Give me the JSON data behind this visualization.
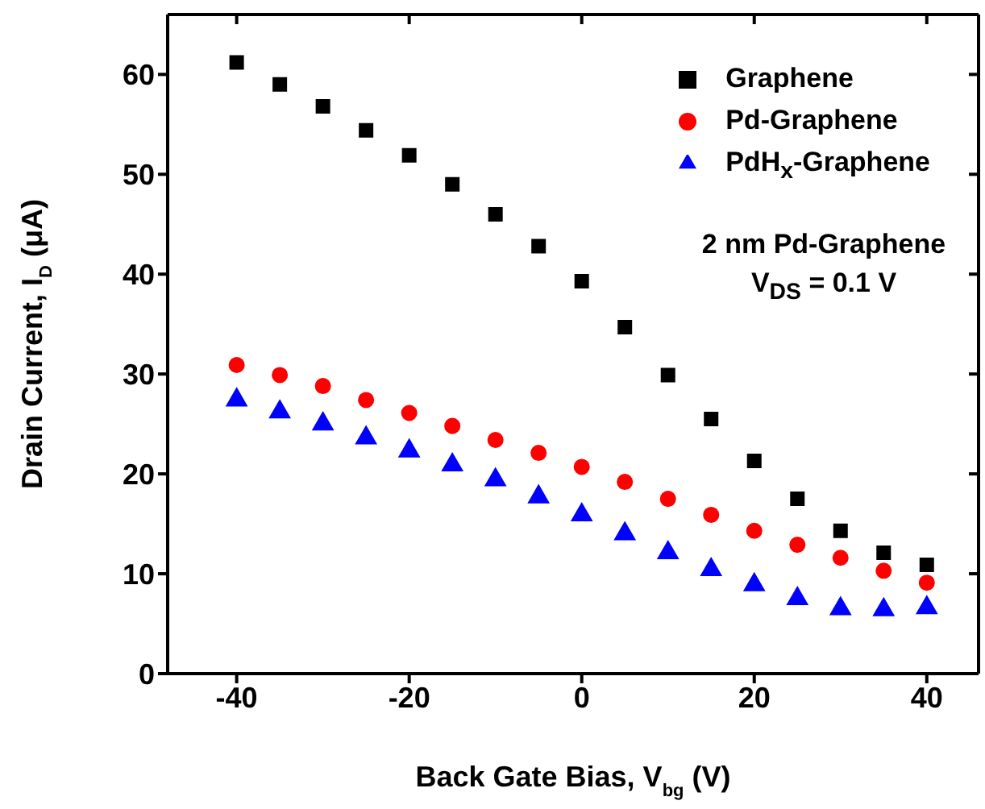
{
  "chart_data": {
    "type": "scatter",
    "xlabel": "Back Gate Bias, V$_{bg}$ (V)",
    "ylabel": "Drain Current, I$_{D}$ (μA)",
    "x": [
      -40,
      -35,
      -30,
      -25,
      -20,
      -15,
      -10,
      -5,
      0,
      5,
      10,
      15,
      20,
      25,
      30,
      35,
      40
    ],
    "series": [
      {
        "name": "Graphene",
        "color": "#000000",
        "marker": "square",
        "values": [
          61.2,
          59.0,
          56.8,
          54.4,
          51.9,
          49.0,
          46.0,
          42.8,
          39.3,
          34.7,
          29.9,
          25.5,
          21.3,
          17.5,
          14.3,
          12.1,
          10.9
        ]
      },
      {
        "name": "Pd-Graphene",
        "color": "#ff0000",
        "marker": "circle",
        "values": [
          30.9,
          29.9,
          28.8,
          27.4,
          26.1,
          24.8,
          23.4,
          22.1,
          20.7,
          19.2,
          17.5,
          15.9,
          14.3,
          12.9,
          11.6,
          10.3,
          9.1
        ]
      },
      {
        "name": "PdH$_{x}$-Graphene",
        "color": "#0000ff",
        "marker": "triangle",
        "values": [
          27.4,
          26.2,
          25.0,
          23.6,
          22.3,
          20.9,
          19.4,
          17.7,
          15.9,
          14.0,
          12.1,
          10.4,
          8.9,
          7.5,
          6.5,
          6.4,
          6.6
        ]
      }
    ],
    "xlim": [
      -48,
      46
    ],
    "xticks": [
      -40,
      -20,
      0,
      20,
      40
    ],
    "ylim": [
      0,
      66
    ],
    "yticks": [
      0,
      10,
      20,
      30,
      40,
      50,
      60
    ],
    "legend": "top right",
    "annotations": [
      "2 nm Pd-Graphene",
      "V$_{DS}$ = 0.1 V"
    ]
  }
}
